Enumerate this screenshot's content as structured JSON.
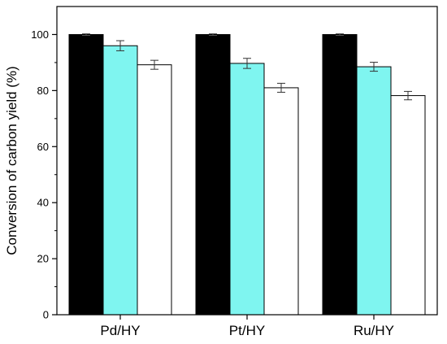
{
  "chart_data": {
    "type": "bar",
    "title": "",
    "xlabel": "",
    "ylabel": "Conversion of carbon yield (%)",
    "ylim": [
      0,
      110
    ],
    "yticks": [
      0,
      20,
      40,
      60,
      80,
      100
    ],
    "grid": false,
    "categories": [
      "Pd/HY",
      "Pt/HY",
      "Ru/HY"
    ],
    "series": [
      {
        "color": "#000000",
        "values": [
          100,
          100,
          100
        ],
        "errors": [
          0.3,
          0.3,
          0.3
        ]
      },
      {
        "color": "#7ff5f0",
        "values": [
          96,
          89.7,
          88.5
        ],
        "errors": [
          1.8,
          1.8,
          1.6
        ]
      },
      {
        "color": "#ffffff",
        "values": [
          89.2,
          81,
          78.2
        ],
        "errors": [
          1.6,
          1.6,
          1.5
        ]
      }
    ]
  }
}
